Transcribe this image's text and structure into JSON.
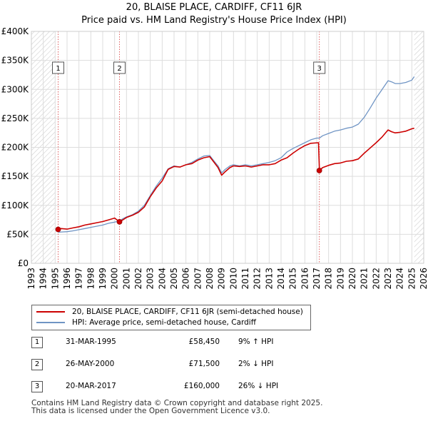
{
  "title_line1": "20, BLAISE PLACE, CARDIFF, CF11 6JR",
  "title_line2": "Price paid vs. HM Land Registry's House Price Index (HPI)",
  "chart_data": {
    "type": "line",
    "title": "Price paid vs. HM Land Registry's House Price Index (HPI)",
    "xlim": [
      1993,
      2026
    ],
    "ylim": [
      0,
      400000
    ],
    "x_ticks": [
      1993,
      1994,
      1995,
      1996,
      1997,
      1998,
      1999,
      2000,
      2001,
      2002,
      2003,
      2004,
      2005,
      2006,
      2007,
      2008,
      2009,
      2010,
      2011,
      2012,
      2013,
      2014,
      2015,
      2016,
      2017,
      2018,
      2019,
      2020,
      2021,
      2022,
      2023,
      2024,
      2025,
      2026
    ],
    "y_ticks": [
      {
        "value": 0,
        "label": "£0"
      },
      {
        "value": 50000,
        "label": "£50K"
      },
      {
        "value": 100000,
        "label": "£100K"
      },
      {
        "value": 150000,
        "label": "£150K"
      },
      {
        "value": 200000,
        "label": "£200K"
      },
      {
        "value": 250000,
        "label": "£250K"
      },
      {
        "value": 300000,
        "label": "£300K"
      },
      {
        "value": 350000,
        "label": "£350K"
      },
      {
        "value": 400000,
        "label": "£400K"
      }
    ],
    "grid": true,
    "hatched_regions": [
      [
        1993,
        1995
      ],
      [
        2025.2,
        2026
      ]
    ],
    "series": [
      {
        "name": "20, BLAISE PLACE, CARDIFF, CF11 6JR (semi-detached house)",
        "color": "#cc0000",
        "x": [
          1995.25,
          1995.5,
          1996,
          1996.5,
          1997,
          1997.5,
          1998,
          1998.5,
          1999,
          1999.5,
          2000,
          2000.41,
          2000.7,
          2001,
          2001.5,
          2002,
          2002.5,
          2003,
          2003.5,
          2004,
          2004.5,
          2005,
          2005.5,
          2006,
          2006.5,
          2007,
          2007.5,
          2008,
          2008.3,
          2008.7,
          2009,
          2009.3,
          2009.7,
          2010,
          2010.5,
          2011,
          2011.5,
          2012,
          2012.5,
          2013,
          2013.5,
          2014,
          2014.5,
          2015,
          2015.5,
          2016,
          2016.5,
          2017.15,
          2017.23,
          2017.5,
          2018,
          2018.5,
          2019,
          2019.5,
          2020,
          2020.5,
          2021,
          2021.5,
          2022,
          2022.5,
          2023,
          2023.3,
          2023.6,
          2024,
          2024.5,
          2025,
          2025.2
        ],
        "y": [
          58450,
          60000,
          59000,
          61000,
          63000,
          66000,
          68000,
          70000,
          72000,
          75000,
          78000,
          71500,
          75000,
          79000,
          83000,
          88000,
          97000,
          115000,
          130000,
          142000,
          162000,
          167000,
          166000,
          170000,
          172000,
          178000,
          182000,
          184000,
          176000,
          165000,
          152000,
          158000,
          165000,
          168000,
          167000,
          168000,
          166000,
          168000,
          170000,
          170000,
          172000,
          178000,
          182000,
          190000,
          197000,
          203000,
          207000,
          208000,
          160000,
          165000,
          169000,
          172000,
          173000,
          176000,
          177000,
          180000,
          190000,
          199000,
          208000,
          218000,
          230000,
          227000,
          225000,
          226000,
          228000,
          232000,
          233000
        ]
      },
      {
        "name": "HPI: Average price, semi-detached house, Cardiff",
        "color": "#6f94c4",
        "x": [
          1995.25,
          1995.5,
          1996,
          1996.5,
          1997,
          1997.5,
          1998,
          1998.5,
          1999,
          1999.5,
          2000,
          2000.41,
          2000.7,
          2001,
          2001.5,
          2002,
          2002.5,
          2003,
          2003.5,
          2004,
          2004.5,
          2005,
          2005.5,
          2006,
          2006.5,
          2007,
          2007.5,
          2008,
          2008.3,
          2008.7,
          2009,
          2009.3,
          2009.7,
          2010,
          2010.5,
          2011,
          2011.5,
          2012,
          2012.5,
          2013,
          2013.5,
          2014,
          2014.5,
          2015,
          2015.5,
          2016,
          2016.5,
          2017,
          2017.23,
          2017.5,
          2018,
          2018.5,
          2019,
          2019.5,
          2020,
          2020.5,
          2021,
          2021.5,
          2022,
          2022.5,
          2023,
          2023.3,
          2023.6,
          2024,
          2024.5,
          2025,
          2025.2
        ],
        "y": [
          53500,
          54000,
          54500,
          56000,
          58000,
          60000,
          62000,
          64000,
          66000,
          69000,
          71000,
          73000,
          77000,
          80000,
          84000,
          90000,
          100000,
          117000,
          133000,
          147000,
          163000,
          168000,
          166000,
          170000,
          174000,
          180000,
          185000,
          186000,
          178000,
          168000,
          156000,
          162000,
          168000,
          170000,
          168000,
          170000,
          168000,
          170000,
          172000,
          174000,
          177000,
          182000,
          192000,
          198000,
          203000,
          208000,
          213000,
          216000,
          216000,
          220000,
          224000,
          228000,
          230000,
          233000,
          235000,
          240000,
          252000,
          268000,
          285000,
          300000,
          315000,
          313000,
          310000,
          310000,
          312000,
          316000,
          322000
        ]
      }
    ],
    "sale_markers": [
      {
        "label": "1",
        "x": 1995.25,
        "y": 58450
      },
      {
        "label": "2",
        "x": 2000.41,
        "y": 71500
      },
      {
        "label": "3",
        "x": 2017.22,
        "y": 160000
      }
    ]
  },
  "legend": {
    "red_label": "20, BLAISE PLACE, CARDIFF, CF11 6JR (semi-detached house)",
    "blue_label": "HPI: Average price, semi-detached house, Cardiff"
  },
  "sales": [
    {
      "num": "1",
      "date": "31-MAR-1995",
      "price": "£58,450",
      "hpi": "9% ↑ HPI"
    },
    {
      "num": "2",
      "date": "26-MAY-2000",
      "price": "£71,500",
      "hpi": "2% ↓ HPI"
    },
    {
      "num": "3",
      "date": "20-MAR-2017",
      "price": "£160,000",
      "hpi": "26% ↓ HPI"
    }
  ],
  "footer_line1": "Contains HM Land Registry data © Crown copyright and database right 2025.",
  "footer_line2": "This data is licensed under the Open Government Licence v3.0."
}
